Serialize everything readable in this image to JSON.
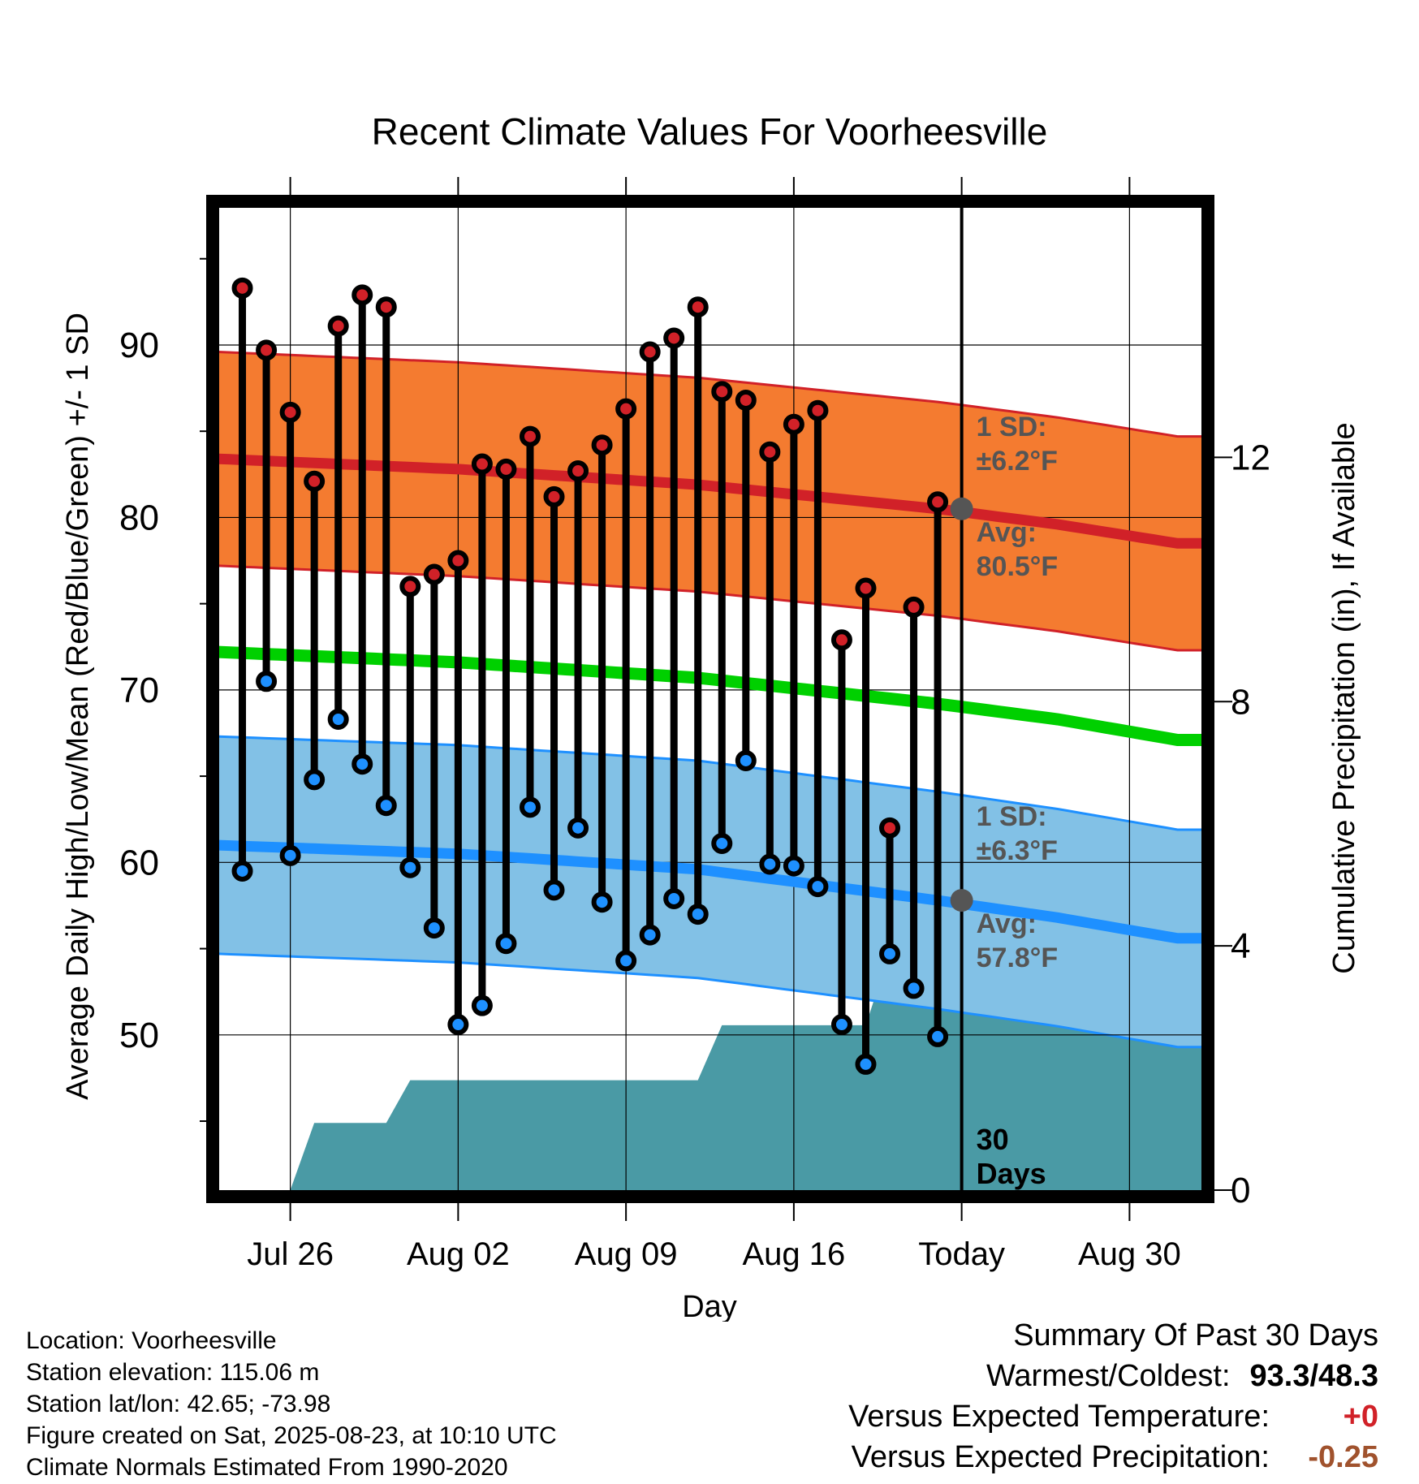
{
  "chart_data": {
    "type": "line",
    "title": "Recent Climate Values For Voorheesville",
    "xlabel": "Day",
    "ylabel": "Average Daily High/Low/Mean (Red/Blue/Green) +/- 1 SD",
    "y2label": "Cumulative Precipitation (in), If Available",
    "x_tick_labels": [
      "Jul 26",
      "Aug 02",
      "Aug 09",
      "Aug 16",
      "Today",
      "Aug 30"
    ],
    "x_tick_days": [
      3,
      10,
      17,
      24,
      31,
      38
    ],
    "today_day": 31,
    "x_range": [
      0,
      41
    ],
    "ylim": [
      41,
      98
    ],
    "y_ticks": [
      50,
      60,
      70,
      80,
      90
    ],
    "y2lim": [
      0,
      16.1
    ],
    "y2_ticks": [
      0,
      4,
      8,
      12
    ],
    "grid": true,
    "day_index": [
      1,
      2,
      3,
      4,
      5,
      6,
      7,
      8,
      9,
      10,
      11,
      12,
      13,
      14,
      15,
      16,
      17,
      18,
      19,
      20,
      21,
      22,
      23,
      24,
      25,
      26,
      27,
      28,
      29,
      30
    ],
    "daily_high": [
      93.3,
      89.7,
      86.1,
      82.1,
      91.1,
      92.9,
      92.2,
      76.0,
      76.7,
      77.5,
      83.1,
      82.8,
      84.7,
      81.2,
      82.7,
      84.2,
      86.3,
      89.6,
      90.4,
      92.2,
      87.3,
      86.8,
      83.8,
      85.4,
      86.2,
      72.9,
      75.9,
      62.0,
      74.8,
      80.9
    ],
    "daily_low": [
      59.5,
      70.5,
      60.4,
      64.8,
      68.3,
      65.7,
      63.3,
      59.7,
      56.2,
      50.6,
      51.7,
      55.3,
      63.2,
      58.4,
      62.0,
      57.7,
      54.3,
      55.8,
      57.9,
      57.0,
      61.1,
      65.9,
      59.9,
      59.8,
      58.6,
      50.6,
      48.3,
      54.7,
      52.7,
      49.9
    ],
    "normals_day": [
      0,
      10,
      20,
      30,
      35,
      40
    ],
    "normal_high": [
      83.4,
      82.8,
      81.9,
      80.5,
      79.6,
      78.5
    ],
    "normal_high_sd": 6.2,
    "normal_low": [
      61.0,
      60.5,
      59.6,
      57.8,
      56.8,
      55.6
    ],
    "normal_low_sd": 6.3,
    "normal_mean": [
      72.2,
      71.6,
      70.7,
      69.2,
      68.3,
      67.1
    ],
    "precip_steps": [
      [
        0,
        0
      ],
      [
        3,
        0
      ],
      [
        4,
        1.1
      ],
      [
        7,
        1.1
      ],
      [
        8,
        1.8
      ],
      [
        20,
        1.8
      ],
      [
        21,
        2.7
      ],
      [
        27,
        2.7
      ],
      [
        28,
        3.9
      ],
      [
        41,
        3.9
      ]
    ],
    "annotations": {
      "high_sd_label": [
        "1 SD:",
        "±6.2°F"
      ],
      "high_avg_label": [
        "Avg:",
        "80.5°F"
      ],
      "low_sd_label": [
        "1 SD:",
        "±6.3°F"
      ],
      "low_avg_label": [
        "Avg:",
        "57.8°F"
      ],
      "window_label": [
        "30",
        "Days"
      ]
    },
    "colors": {
      "high_band": "#f47b30",
      "high_line": "#d12128",
      "low_band": "#82c1e6",
      "low_line": "#1e90ff",
      "mean_line": "#00d000",
      "precip": "#4a9aa5",
      "high_dot": "#d12128",
      "low_dot": "#1e90ff",
      "avg_dot": "#555555"
    }
  },
  "footer": {
    "location": "Location: Voorheesville",
    "elevation": "Station elevation: 115.06 m",
    "latlon": "Station lat/lon: 42.65; -73.98",
    "created": "Figure created on Sat, 2025-08-23, at 10:10 UTC",
    "normals": "Climate Normals Estimated From 1990-2020"
  },
  "summary": {
    "title": "Summary Of Past 30 Days",
    "warm_cold_label": "Warmest/Coldest:",
    "warm_cold_value": "93.3/48.3",
    "temp_label": "Versus Expected Temperature:",
    "temp_value": "+0",
    "precip_label": "Versus Expected Precipitation:",
    "precip_value": "-0.25",
    "temp_color": "#d12128",
    "precip_color": "#a0522d"
  }
}
